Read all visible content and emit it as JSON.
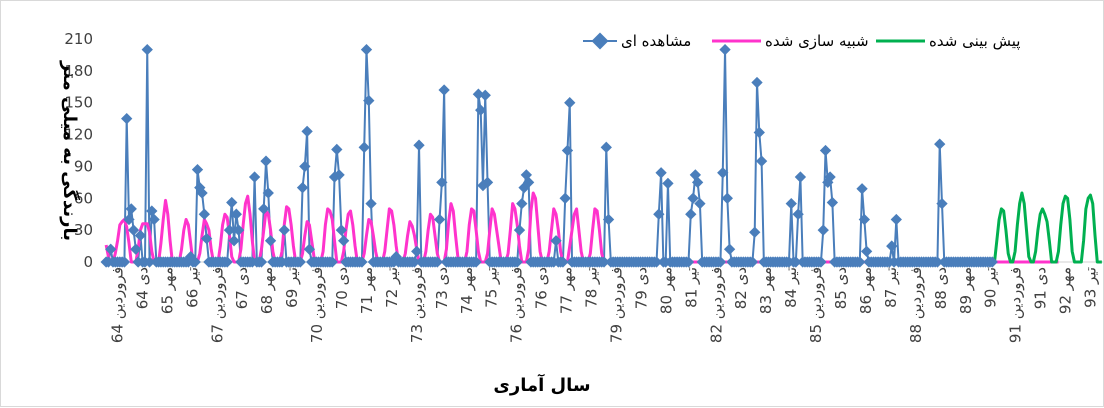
{
  "chart_data": {
    "type": "line",
    "xlabel": "سال آماری",
    "ylabel": "بارندگی به میلی متر",
    "ylim": [
      0,
      210
    ],
    "yticks": [
      0,
      30,
      60,
      90,
      120,
      150,
      180,
      210
    ],
    "legend_position": "top-right",
    "grid": false,
    "colors": {
      "observed": "#4a7ebb",
      "simulated": "#ff33cc",
      "forecast": "#00b050"
    },
    "x_labels": [
      "فروردین 64",
      "دی 64",
      "مهر 65",
      "تیر 66",
      "فروردین 67",
      "دی 67",
      "مهر 68",
      "تیر 69",
      "فروردین 70",
      "دی 70",
      "مهر 71",
      "تیر 72",
      "فروردین 73",
      "دی 73",
      "مهر 74",
      "تیر 75",
      "فروردین 76",
      "دی 76",
      "مهر 77",
      "تیر 78",
      "فروردین 79",
      "دی 79",
      "مهر 80",
      "تیر 81",
      "فروردین 82",
      "دی 82",
      "مهر 83",
      "تیر 84",
      "فروردین 85",
      "دی 85",
      "مهر 86",
      "تیر 87",
      "فروردین 88",
      "دی 88",
      "مهر 89",
      "تیر 90",
      "فروردین 91",
      "دی 91",
      "مهر 92",
      "تیر 93"
    ],
    "series": [
      {
        "name": "مشاهده ای",
        "values": [
          0,
          0,
          12,
          0,
          0,
          0,
          0,
          0,
          0,
          135,
          40,
          50,
          30,
          12,
          0,
          25,
          0,
          0,
          200,
          0,
          48,
          40,
          0,
          0,
          0,
          0,
          0,
          0,
          0,
          0,
          0,
          0,
          0,
          0,
          0,
          0,
          0,
          5,
          0,
          0,
          87,
          70,
          65,
          45,
          22,
          0,
          0,
          0,
          0,
          0,
          0,
          0,
          0,
          0,
          30,
          56,
          20,
          45,
          30,
          0,
          0,
          0,
          0,
          0,
          0,
          80,
          0,
          0,
          0,
          50,
          95,
          65,
          20,
          0,
          0,
          0,
          0,
          0,
          30,
          0,
          0,
          0,
          0,
          0,
          0,
          0,
          70,
          90,
          123,
          12,
          0,
          0,
          0,
          0,
          0,
          0,
          0,
          0,
          0,
          0,
          80,
          106,
          82,
          30,
          20,
          0,
          0,
          0,
          0,
          0,
          0,
          0,
          0,
          108,
          200,
          152,
          55,
          0,
          0,
          0,
          0,
          0,
          0,
          0,
          0,
          0,
          0,
          5,
          0,
          0,
          0,
          0,
          0,
          0,
          0,
          0,
          10,
          110,
          0,
          0,
          0,
          0,
          0,
          0,
          0,
          0,
          40,
          75,
          162,
          0,
          0,
          0,
          0,
          0,
          0,
          0,
          0,
          0,
          0,
          0,
          0,
          0,
          0,
          158,
          143,
          72,
          157,
          75,
          0,
          0,
          0,
          0,
          0,
          0,
          0,
          0,
          0,
          0,
          0,
          0,
          0,
          30,
          55,
          70,
          82,
          75,
          0,
          0,
          0,
          0,
          0,
          0,
          0,
          0,
          0,
          0,
          0,
          20,
          0,
          0,
          0,
          60,
          105,
          150,
          0,
          0,
          0,
          0,
          0,
          0,
          0,
          0,
          0,
          0,
          0,
          0,
          0,
          0,
          0,
          108,
          40,
          0,
          0,
          0,
          0,
          0,
          0,
          0,
          0,
          0,
          0,
          0,
          0,
          0,
          0,
          0,
          0,
          0,
          0,
          0,
          0,
          0,
          45,
          84,
          0,
          0,
          74,
          0,
          0,
          0,
          0,
          0,
          0,
          0,
          0,
          0,
          45,
          60,
          82,
          75,
          55,
          0,
          0,
          0,
          0,
          0,
          0,
          0,
          0,
          0,
          84,
          200,
          60,
          12,
          0,
          0,
          0,
          0,
          0,
          0,
          0,
          0,
          0,
          0,
          28,
          169,
          122,
          95,
          0,
          0,
          0,
          0,
          0,
          0,
          0,
          0,
          0,
          0,
          0,
          0,
          55,
          0,
          0,
          45,
          80,
          0,
          0,
          0,
          0,
          0,
          0,
          0,
          0,
          0,
          30,
          105,
          75,
          80,
          56,
          0,
          0,
          0,
          0,
          0,
          0,
          0,
          0,
          0,
          0,
          0,
          0,
          69,
          40,
          10,
          0,
          0,
          0,
          0,
          0,
          0,
          0,
          0,
          0,
          0,
          15,
          0,
          40,
          0,
          0,
          0,
          0,
          0,
          0,
          0,
          0,
          0,
          0,
          0,
          0,
          0,
          0,
          0,
          0,
          0,
          0,
          111,
          55,
          0,
          0,
          0,
          0,
          0,
          0,
          0,
          0,
          0,
          0,
          0,
          0,
          0,
          0,
          0,
          0,
          0,
          0,
          0,
          0,
          0,
          0
        ]
      },
      {
        "name": "شبیه سازی شده",
        "values": [
          16,
          5,
          0,
          0,
          8,
          20,
          35,
          38,
          40,
          33,
          18,
          0,
          0,
          0,
          12,
          30,
          36,
          36,
          36,
          28,
          10,
          0,
          0,
          0,
          18,
          40,
          58,
          45,
          20,
          0,
          0,
          0,
          0,
          12,
          30,
          40,
          35,
          18,
          0,
          0,
          0,
          8,
          25,
          40,
          36,
          30,
          12,
          0,
          0,
          0,
          15,
          35,
          45,
          42,
          25,
          5,
          0,
          0,
          0,
          12,
          35,
          55,
          62,
          45,
          20,
          0,
          0,
          0,
          12,
          30,
          48,
          45,
          30,
          10,
          0,
          0,
          0,
          10,
          35,
          52,
          50,
          35,
          15,
          0,
          0,
          0,
          8,
          25,
          38,
          35,
          20,
          5,
          0,
          0,
          0,
          10,
          35,
          50,
          48,
          40,
          20,
          0,
          0,
          0,
          10,
          30,
          45,
          48,
          35,
          15,
          0,
          0,
          0,
          8,
          25,
          40,
          38,
          25,
          10,
          0,
          0,
          0,
          10,
          30,
          50,
          48,
          35,
          15,
          0,
          0,
          0,
          8,
          25,
          38,
          34,
          25,
          12,
          0,
          0,
          0,
          10,
          30,
          45,
          42,
          25,
          8,
          0,
          0,
          0,
          12,
          38,
          55,
          48,
          25,
          5,
          0,
          0,
          0,
          10,
          35,
          50,
          48,
          30,
          10,
          0,
          0,
          0,
          8,
          30,
          50,
          45,
          30,
          15,
          0,
          0,
          0,
          8,
          30,
          55,
          50,
          35,
          15,
          0,
          0,
          0,
          12,
          48,
          65,
          60,
          35,
          10,
          0,
          0,
          0,
          10,
          30,
          50,
          45,
          30,
          10,
          0,
          0,
          0,
          15,
          30,
          45,
          50,
          30,
          10,
          0,
          0,
          0,
          8,
          30,
          50,
          48,
          30,
          8,
          0,
          0,
          0,
          0,
          0,
          0,
          0,
          0,
          0,
          0,
          0,
          0,
          0,
          0,
          0,
          0,
          0,
          0,
          0,
          0,
          0,
          0,
          0,
          0,
          0,
          0,
          0,
          0,
          0,
          0,
          0,
          0,
          0,
          0,
          0,
          0,
          0,
          0,
          0,
          0,
          0,
          0,
          0,
          0,
          0,
          0,
          0,
          0,
          0,
          0,
          0,
          0,
          0,
          0,
          0,
          0,
          0,
          0,
          0,
          0,
          0,
          0,
          0,
          0,
          0,
          0,
          0,
          0,
          0,
          0,
          0,
          0,
          0,
          0,
          0,
          0,
          0,
          0,
          0,
          0,
          0,
          0,
          0,
          0,
          0,
          0,
          0,
          0,
          0,
          0,
          0,
          0,
          0,
          0,
          0,
          0,
          0,
          0,
          0,
          0,
          0,
          0,
          0,
          0,
          0,
          0,
          0,
          0,
          0,
          0,
          0,
          0,
          0,
          0,
          0,
          0,
          0,
          0,
          0,
          0,
          0,
          0,
          0,
          0,
          0,
          0,
          0,
          0,
          0,
          0,
          0,
          0,
          0,
          0,
          0,
          0,
          0,
          0,
          0,
          0,
          0,
          0,
          0,
          0,
          0,
          0,
          0,
          0,
          0,
          0,
          0,
          0,
          0,
          0,
          0,
          0,
          0,
          0,
          0,
          0,
          0,
          0,
          0,
          0,
          0,
          0,
          0,
          0,
          0,
          0,
          0,
          0,
          0,
          0,
          0,
          0,
          0,
          0,
          0,
          0,
          0,
          0,
          0,
          0,
          0,
          0,
          0,
          0,
          0,
          0,
          0,
          0,
          0,
          0,
          0,
          0,
          0,
          0,
          0,
          0
        ]
      },
      {
        "name": "پیش بینی شده",
        "values": [
          0,
          20,
          40,
          50,
          48,
          30,
          8,
          0,
          0,
          10,
          35,
          55,
          65,
          55,
          30,
          5,
          0,
          0,
          10,
          30,
          45,
          50,
          45,
          38,
          20,
          0,
          0,
          0,
          10,
          35,
          55,
          62,
          60,
          40,
          10,
          0,
          0,
          0,
          0,
          20,
          50,
          60,
          63,
          55,
          25,
          0,
          0,
          0
        ]
      }
    ]
  }
}
